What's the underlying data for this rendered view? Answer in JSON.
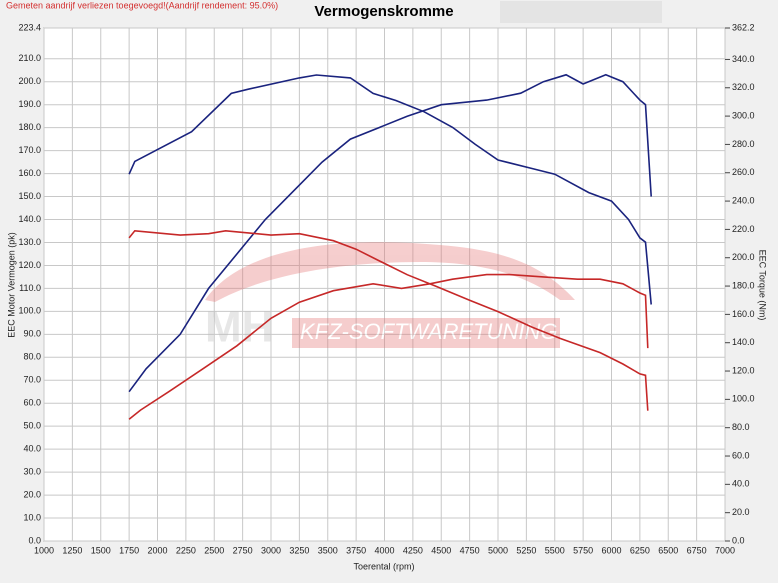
{
  "chart_data": {
    "type": "line",
    "title": "Vermogenskromme",
    "subtitle": "Gemeten aandrijf verliezen toegevoegd!(Aandrijf rendement: 95.0%)",
    "watermark": "KFZ-SOFTWARETUNING",
    "logo": "MH",
    "xlabel": "Toerental (rpm)",
    "ylabel": "EEC Motor Vermogen (pk)",
    "y2label": "EEC Torque (Nm)",
    "grid": true,
    "xlim": [
      1000,
      7000
    ],
    "xticks": [
      1000,
      1250,
      1500,
      1750,
      2000,
      2250,
      2500,
      2750,
      3000,
      3250,
      3500,
      3750,
      4000,
      4250,
      4500,
      4750,
      5000,
      5250,
      5500,
      5750,
      6000,
      6250,
      6500,
      6750,
      7000
    ],
    "ylim": [
      0,
      223.4
    ],
    "yticks": [
      {
        "value": 0,
        "label": "0.0"
      },
      {
        "value": 10,
        "label": "10.0"
      },
      {
        "value": 20,
        "label": "20.0"
      },
      {
        "value": 30,
        "label": "30.0"
      },
      {
        "value": 40,
        "label": "40.0"
      },
      {
        "value": 50,
        "label": "50.0"
      },
      {
        "value": 60,
        "label": "60.0"
      },
      {
        "value": 70,
        "label": "70.0"
      },
      {
        "value": 80,
        "label": "80.0"
      },
      {
        "value": 90,
        "label": "90.0"
      },
      {
        "value": 100,
        "label": "100.0"
      },
      {
        "value": 110,
        "label": "110.0"
      },
      {
        "value": 120,
        "label": "120.0"
      },
      {
        "value": 130,
        "label": "130.0"
      },
      {
        "value": 140,
        "label": "140.0"
      },
      {
        "value": 150,
        "label": "150.0"
      },
      {
        "value": 160,
        "label": "160.0"
      },
      {
        "value": 170,
        "label": "170.0"
      },
      {
        "value": 180,
        "label": "180.0"
      },
      {
        "value": 190,
        "label": "190.0"
      },
      {
        "value": 200,
        "label": "200.0"
      },
      {
        "value": 210,
        "label": "210.0"
      },
      {
        "value": 223.4,
        "label": "223.4"
      }
    ],
    "y2lim": [
      0,
      362.2
    ],
    "y2ticks": [
      {
        "value": 0,
        "label": "0.0"
      },
      {
        "value": 20,
        "label": "20.0"
      },
      {
        "value": 40,
        "label": "40.0"
      },
      {
        "value": 60,
        "label": "60.0"
      },
      {
        "value": 80,
        "label": "80.0"
      },
      {
        "value": 100,
        "label": "100.0"
      },
      {
        "value": 120,
        "label": "120.0"
      },
      {
        "value": 140,
        "label": "140.0"
      },
      {
        "value": 160,
        "label": "160.0"
      },
      {
        "value": 180,
        "label": "180.0"
      },
      {
        "value": 200,
        "label": "200.0"
      },
      {
        "value": 220,
        "label": "220.0"
      },
      {
        "value": 240,
        "label": "240.0"
      },
      {
        "value": 260,
        "label": "260.0"
      },
      {
        "value": 280,
        "label": "280.0"
      },
      {
        "value": 300,
        "label": "300.0"
      },
      {
        "value": 320,
        "label": "320.0"
      },
      {
        "value": 340,
        "label": "340.0"
      },
      {
        "value": 362.2,
        "label": "362.2"
      }
    ],
    "series": [
      {
        "color": "#1a237e",
        "axis": "y",
        "x": [
          1750,
          1900,
          2200,
          2450,
          2700,
          2950,
          3250,
          3450,
          3700,
          3950,
          4200,
          4500,
          4900,
          5200,
          5400,
          5600,
          5750,
          5950,
          6100,
          6250,
          6300,
          6350
        ],
        "values": [
          65,
          75,
          90,
          110,
          125,
          140,
          155,
          165,
          175,
          180,
          185,
          190,
          192,
          195,
          200,
          203,
          199,
          203,
          200,
          192,
          190,
          150
        ]
      },
      {
        "color": "#1a237e",
        "axis": "y2",
        "x": [
          1750,
          1800,
          2300,
          2650,
          2800,
          3250,
          3400,
          3700,
          3900,
          4100,
          4350,
          4600,
          4800,
          5000,
          5300,
          5500,
          5800,
          6000,
          6150,
          6250,
          6300,
          6350
        ],
        "values": [
          259,
          268,
          289,
          316,
          319,
          327,
          329,
          327,
          316,
          311,
          303,
          292,
          280,
          269,
          263,
          259,
          246,
          240,
          227,
          214,
          211,
          167
        ]
      },
      {
        "color": "#c62828",
        "axis": "y",
        "x": [
          1750,
          1850,
          2100,
          2400,
          2700,
          3000,
          3250,
          3550,
          3900,
          4150,
          4400,
          4600,
          4900,
          5100,
          5400,
          5700,
          5900,
          6100,
          6250,
          6300,
          6320
        ],
        "values": [
          53,
          57,
          65,
          75,
          85,
          97,
          104,
          109,
          112,
          110,
          112,
          114,
          116,
          116,
          115,
          114,
          114,
          112,
          108,
          107,
          84
        ]
      },
      {
        "color": "#c62828",
        "axis": "y2",
        "x": [
          1750,
          1800,
          2200,
          2450,
          2600,
          3000,
          3250,
          3550,
          3750,
          3950,
          4200,
          4450,
          4750,
          5000,
          5300,
          5550,
          5900,
          6100,
          6250,
          6300,
          6320
        ],
        "values": [
          214,
          219,
          216,
          217,
          219,
          216,
          217,
          212,
          206,
          198,
          188,
          180,
          170,
          162,
          151,
          143,
          133,
          125,
          118,
          117,
          92
        ]
      }
    ]
  }
}
